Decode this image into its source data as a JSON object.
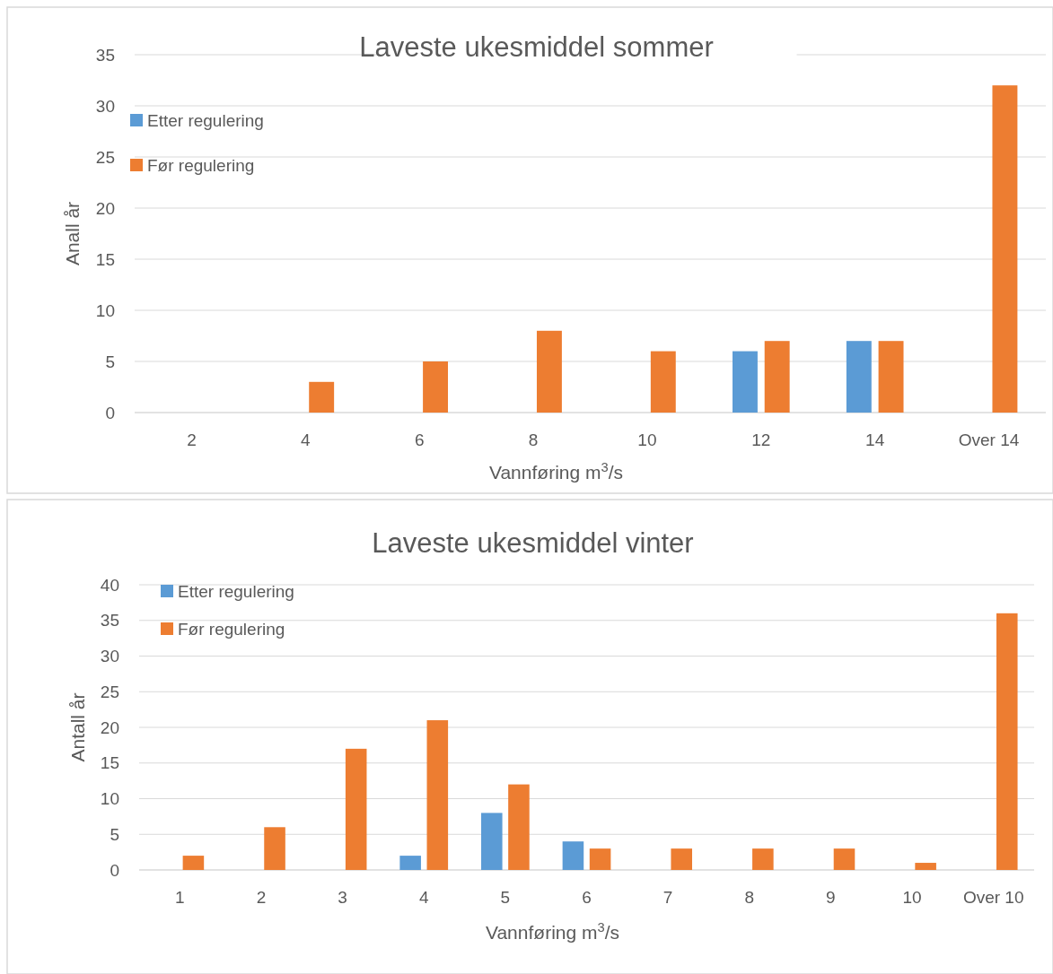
{
  "chart_data": [
    {
      "type": "bar",
      "title": "Laveste ukesmiddel sommer",
      "xlabel": "Vannføring m$^{3}$/s",
      "ylabel": "Anall år",
      "categories": [
        "2",
        "4",
        "6",
        "8",
        "10",
        "12",
        "14",
        "Over 14"
      ],
      "series": [
        {
          "name": "Etter regulering",
          "color": "#5b9bd5",
          "values": [
            0,
            0,
            0,
            0,
            0,
            6,
            7,
            0
          ]
        },
        {
          "name": "Før regulering",
          "color": "#ed7d31",
          "values": [
            0,
            3,
            5,
            8,
            6,
            7,
            7,
            32
          ]
        }
      ],
      "ylim": [
        0,
        35
      ],
      "yticks": [
        0,
        5,
        10,
        15,
        20,
        25,
        30,
        35
      ],
      "grid": "y",
      "legend": "top left"
    },
    {
      "type": "bar",
      "title": "Laveste ukesmiddel vinter",
      "xlabel": "Vannføring m$^{3}$/s",
      "ylabel": "Antall år",
      "categories": [
        "1",
        "2",
        "3",
        "4",
        "5",
        "6",
        "7",
        "8",
        "9",
        "10",
        "Over 10"
      ],
      "series": [
        {
          "name": "Etter regulering",
          "color": "#5b9bd5",
          "values": [
            0,
            0,
            0,
            2,
            8,
            4,
            0,
            0,
            0,
            0,
            0
          ]
        },
        {
          "name": "Før regulering",
          "color": "#ed7d31",
          "values": [
            2,
            6,
            17,
            21,
            12,
            3,
            3,
            3,
            3,
            1,
            36
          ]
        }
      ],
      "ylim": [
        0,
        40
      ],
      "yticks": [
        0,
        5,
        10,
        15,
        20,
        25,
        30,
        35,
        40
      ],
      "grid": "y",
      "legend": "top left"
    }
  ]
}
